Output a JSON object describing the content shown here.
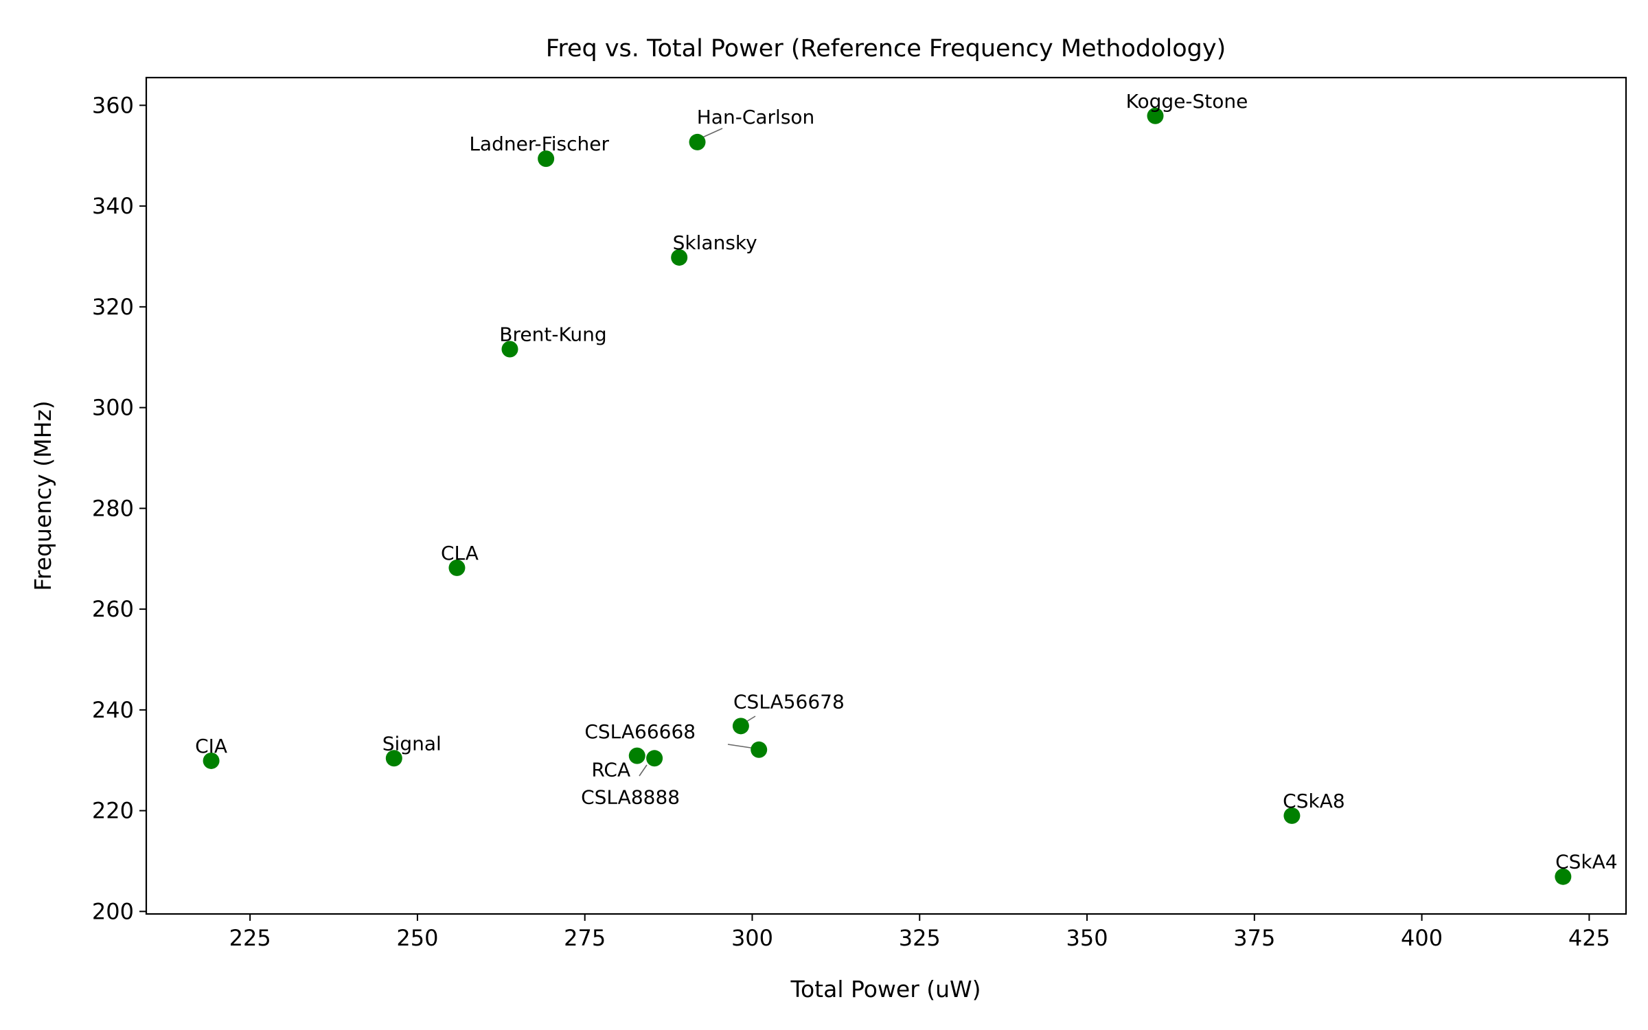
{
  "chart_data": {
    "type": "scatter",
    "title": "Freq vs. Total Power (Reference Frequency Methodology)",
    "xlabel": "Total Power (uW)",
    "ylabel": "Frequency (MHz)",
    "xlim": [
      209.5,
      430.5
    ],
    "ylim": [
      199.5,
      365.5
    ],
    "xticks": [
      225,
      250,
      275,
      300,
      325,
      350,
      375,
      400,
      425
    ],
    "yticks": [
      200,
      220,
      240,
      260,
      280,
      300,
      320,
      340,
      360
    ],
    "grid": false,
    "marker_color": "#008000",
    "points": [
      {
        "label": "CIA",
        "x": 219.2,
        "y": 229.9
      },
      {
        "label": "Signal",
        "x": 246.5,
        "y": 230.4
      },
      {
        "label": "CLA",
        "x": 255.9,
        "y": 268.2
      },
      {
        "label": "Brent-Kung",
        "x": 263.8,
        "y": 311.6
      },
      {
        "label": "Ladner-Fischer",
        "x": 269.2,
        "y": 349.4
      },
      {
        "label": "Sklansky",
        "x": 289.1,
        "y": 329.8
      },
      {
        "label": "Han-Carlson",
        "x": 291.8,
        "y": 352.7
      },
      {
        "label": "RCA",
        "x": 282.8,
        "y": 230.9
      },
      {
        "label": "CSLA8888",
        "x": 285.4,
        "y": 230.4
      },
      {
        "label": "CSLA56678",
        "x": 298.3,
        "y": 236.8
      },
      {
        "label": "CSLA66668",
        "x": 301.0,
        "y": 232.1
      },
      {
        "label": "Kogge-Stone",
        "x": 360.2,
        "y": 357.9
      },
      {
        "label": "CSkA8",
        "x": 380.6,
        "y": 219.0
      },
      {
        "label": "CSkA4",
        "x": 421.1,
        "y": 206.9
      }
    ]
  }
}
